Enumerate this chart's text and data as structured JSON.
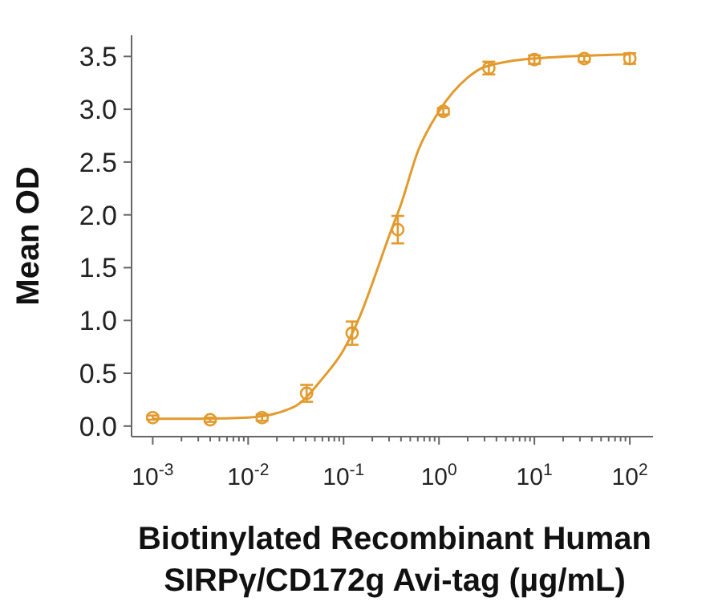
{
  "chart_data": {
    "type": "scatter",
    "xlabel": "Biotinylated Recombinant Human SIRPγ/CD172g Avi-tag (µg/mL)",
    "ylabel": "Mean OD",
    "log": "x",
    "grid": false,
    "xlim": [
      0.0006,
      175
    ],
    "ylim": [
      -0.1,
      3.7
    ],
    "xticks": [
      {
        "value": 0.001,
        "label": "10$^{-3}$"
      },
      {
        "value": 0.002,
        "label": null
      },
      {
        "value": 0.003,
        "label": null
      },
      {
        "value": 0.004,
        "label": null
      },
      {
        "value": 0.005,
        "label": null
      },
      {
        "value": 0.006,
        "label": null
      },
      {
        "value": 0.007,
        "label": null
      },
      {
        "value": 0.008,
        "label": null
      },
      {
        "value": 0.009,
        "label": null
      },
      {
        "value": 0.01,
        "label": "10$^{-2}$"
      },
      {
        "value": 0.02,
        "label": null
      },
      {
        "value": 0.03,
        "label": null
      },
      {
        "value": 0.04,
        "label": null
      },
      {
        "value": 0.05,
        "label": null
      },
      {
        "value": 0.06,
        "label": null
      },
      {
        "value": 0.07,
        "label": null
      },
      {
        "value": 0.08,
        "label": null
      },
      {
        "value": 0.09,
        "label": null
      },
      {
        "value": 0.1,
        "label": "10$^{-1}$"
      },
      {
        "value": 0.2,
        "label": null
      },
      {
        "value": 0.3,
        "label": null
      },
      {
        "value": 0.4,
        "label": null
      },
      {
        "value": 0.5,
        "label": null
      },
      {
        "value": 0.6,
        "label": null
      },
      {
        "value": 0.7,
        "label": null
      },
      {
        "value": 0.8,
        "label": null
      },
      {
        "value": 0.9,
        "label": null
      },
      {
        "value": 1,
        "label": "10$^{0}$"
      },
      {
        "value": 2,
        "label": null
      },
      {
        "value": 3,
        "label": null
      },
      {
        "value": 4,
        "label": null
      },
      {
        "value": 5,
        "label": null
      },
      {
        "value": 6,
        "label": null
      },
      {
        "value": 7,
        "label": null
      },
      {
        "value": 8,
        "label": null
      },
      {
        "value": 9,
        "label": null
      },
      {
        "value": 10,
        "label": "10$^{1}$"
      },
      {
        "value": 20,
        "label": null
      },
      {
        "value": 30,
        "label": null
      },
      {
        "value": 40,
        "label": null
      },
      {
        "value": 50,
        "label": null
      },
      {
        "value": 60,
        "label": null
      },
      {
        "value": 70,
        "label": null
      },
      {
        "value": 80,
        "label": null
      },
      {
        "value": 90,
        "label": null
      },
      {
        "value": 100,
        "label": "10$^{2}$"
      }
    ],
    "yticks": [
      {
        "value": 0,
        "label": "0.0"
      },
      {
        "value": 0.5,
        "label": "0.5"
      },
      {
        "value": 1,
        "label": "1.0"
      },
      {
        "value": 1.5,
        "label": "1.5"
      },
      {
        "value": 2,
        "label": "2.0"
      },
      {
        "value": 2.5,
        "label": "2.5"
      },
      {
        "value": 3,
        "label": "3.0"
      },
      {
        "value": 3.5,
        "label": "3.5"
      }
    ],
    "series": [
      {
        "type": "line",
        "marker": "none",
        "line_style": "solid",
        "color": "#e39a2d",
        "x": [
          0.001,
          0.003,
          0.01,
          0.03,
          0.06,
          0.1,
          0.15,
          0.2,
          0.3,
          0.4,
          0.6,
          1,
          2,
          3,
          10,
          100
        ],
        "values": [
          0.07,
          0.07,
          0.08,
          0.18,
          0.45,
          0.72,
          1.05,
          1.35,
          1.8,
          2.1,
          2.6,
          2.98,
          3.3,
          3.4,
          3.48,
          3.52
        ]
      },
      {
        "marker": "circle",
        "color": "#e39a2d",
        "x": [
          0.001,
          0.004,
          0.014,
          0.041,
          0.123,
          0.37,
          1.11,
          3.33,
          10,
          33.3,
          100
        ],
        "values": [
          0.08,
          0.06,
          0.08,
          0.31,
          0.88,
          1.86,
          2.98,
          3.39,
          3.47,
          3.48,
          3.48
        ],
        "errors": [
          0.02,
          0.02,
          0.03,
          0.08,
          0.11,
          0.13,
          0.03,
          0.06,
          0.04,
          0.03,
          0.05
        ]
      }
    ]
  }
}
